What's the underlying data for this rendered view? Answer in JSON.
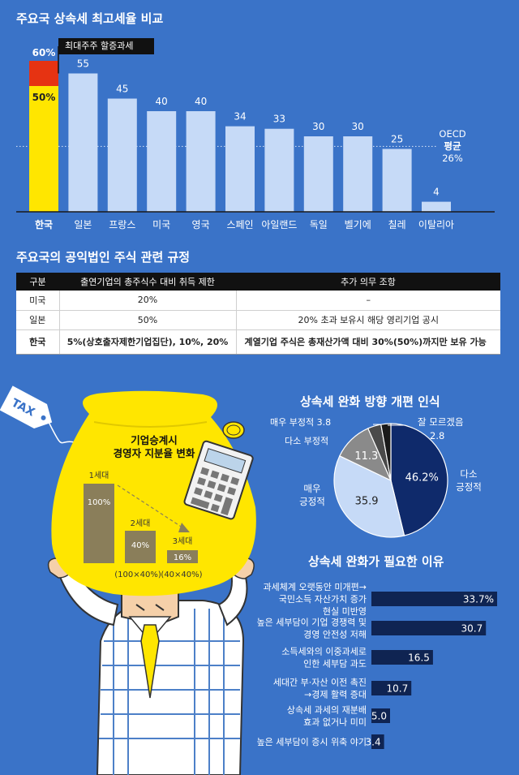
{
  "titles": {
    "tax_rate": "주요국 상속세 최고세율 비교",
    "regulation": "주요국의 공익법인 주식 관련 규정",
    "perception": "상속세 완화 방향 개편 인식",
    "reasons": "상속세 완화가 필요한 이유"
  },
  "annotations": {
    "surtax_label": "최대주주 할증과세",
    "korea_total": "60%",
    "korea_base": "50%",
    "oecd_label": "OECD",
    "oecd_avg": "평균",
    "oecd_value": "26%"
  },
  "table": {
    "headers": [
      "구분",
      "출연기업의 총주식수 대비 취득 제한",
      "추가 의무 조항"
    ],
    "rows": [
      [
        "미국",
        "20%",
        "–"
      ],
      [
        "일본",
        "50%",
        "20% 초과 보유시 해당 영리기업 공시"
      ],
      [
        "한국",
        "5%(상호출자제한기업집단), 10%, 20%",
        "계열기업 주식은 총재산가액 대비 30%(50%)까지만 보유 가능"
      ]
    ]
  },
  "illustration": {
    "tax_tag": "TAX",
    "bag_title_1": "기업승계시",
    "bag_title_2": "경영자 지분율 변화",
    "gen1": "1세대",
    "gen2": "2세대",
    "gen3": "3세대",
    "val1": "100%",
    "val2": "40%",
    "val3": "16%",
    "formula2": "(100×40%)",
    "formula3": "(40×40%)"
  },
  "chart_data": [
    {
      "type": "bar",
      "title": "주요국 상속세 최고세율 비교",
      "categories": [
        "한국",
        "일본",
        "프랑스",
        "미국",
        "영국",
        "스페인",
        "아일랜드",
        "독일",
        "벨기에",
        "칠레",
        "이탈리아"
      ],
      "values": [
        50,
        55,
        45,
        40,
        40,
        34,
        33,
        30,
        30,
        25,
        4
      ],
      "value_labels": [
        "",
        "55",
        "45",
        "40",
        "40",
        "34",
        "33",
        "30",
        "30",
        "25",
        "4"
      ],
      "stack_extra": {
        "category": "한국",
        "value": 10,
        "label": "최대주주 할증과세"
      },
      "reference_line": {
        "value": 26,
        "label": "OECD 평균 26%"
      },
      "ylim": [
        0,
        60
      ],
      "colors": {
        "bar": "#c6daf7",
        "korea": "#ffe600",
        "surtax": "#e63312"
      }
    },
    {
      "type": "pie",
      "title": "상속세 완화 방향 개편 인식",
      "slices": [
        {
          "name": "다소 긍정적",
          "value": 46.2,
          "label": "46.2%",
          "color": "#0f2a6b"
        },
        {
          "name": "매우 긍정적",
          "value": 35.9,
          "label": "35.9",
          "color": "#c6daf7"
        },
        {
          "name": "다소 부정적",
          "value": 11.3,
          "label": "11.3",
          "color": "#8a8a8a"
        },
        {
          "name": "매우 부정적",
          "value": 3.8,
          "label": "",
          "color": "#4a4a4a"
        },
        {
          "name": "잘 모르겠음",
          "value": 2.8,
          "label": "",
          "color": "#1a1a1a"
        }
      ],
      "outer_labels": {
        "dont_know": [
          "잘 모르겠음",
          "2.8"
        ],
        "very_neg": "매우 부정적 3.8",
        "some_neg": "다소 부정적",
        "very_pos": [
          "매우",
          "긍정적"
        ],
        "some_pos": [
          "다소",
          "긍정적"
        ]
      }
    },
    {
      "type": "bar",
      "orientation": "horizontal",
      "title": "상속세 완화가 필요한 이유",
      "categories": [
        [
          "과세체계 오랫동안 미개편→",
          "국민소득 자산가치 증가",
          "현실 미반영"
        ],
        [
          "높은 세부담이 기업 경쟁력 및",
          "경영 안전성 저해"
        ],
        [
          "소득세와의 이중과세로",
          "인한 세부담 과도"
        ],
        [
          "세대간 부·자산 이전 촉진",
          "→경제 활력 증대"
        ],
        [
          "상속세 과세의 재분배",
          "효과 없거나 미미"
        ],
        [
          "높은 세부담이 증시 위축 야기"
        ]
      ],
      "values": [
        33.7,
        30.7,
        16.5,
        10.7,
        5.0,
        3.4
      ],
      "value_labels": [
        "33.7%",
        "30.7",
        "16.5",
        "10.7",
        "5.0",
        "3.4"
      ],
      "color": "#0f2452"
    }
  ]
}
